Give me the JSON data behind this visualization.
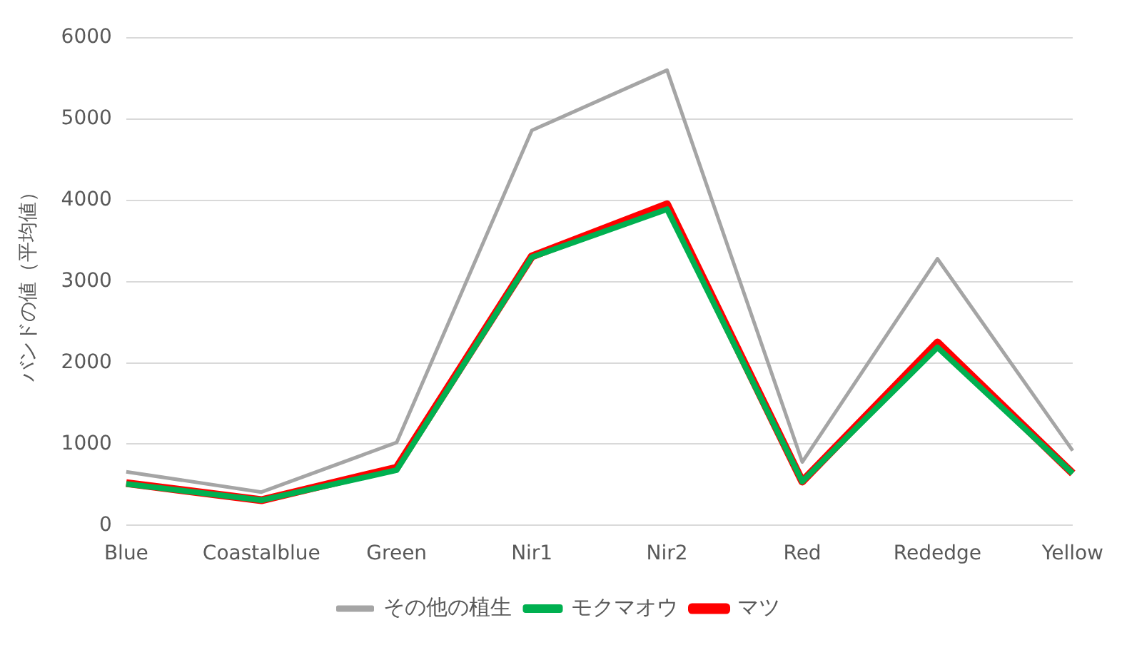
{
  "chart_data": {
    "type": "line",
    "ylabel": "バンドの値（平均値）",
    "categories": [
      "Blue",
      "Coastalblue",
      "Green",
      "Nir1",
      "Nir2",
      "Red",
      "Rededge",
      "Yellow"
    ],
    "series": [
      {
        "name": "マツ",
        "color": "#ff0000",
        "values": [
          520,
          310,
          710,
          3310,
          3950,
          540,
          2250,
          640
        ]
      },
      {
        "name": "モクマオウ",
        "color": "#00b050",
        "values": [
          510,
          310,
          680,
          3300,
          3890,
          540,
          2190,
          640
        ]
      },
      {
        "name": "その他の植生",
        "color": "#a5a5a5",
        "values": [
          660,
          410,
          1020,
          4860,
          5600,
          780,
          3280,
          920
        ]
      }
    ],
    "ylim": [
      0,
      6000
    ],
    "yticks": [
      0,
      1000,
      2000,
      3000,
      4000,
      5000,
      6000
    ],
    "grid": "y",
    "legend": "bottom",
    "marker": "none"
  }
}
